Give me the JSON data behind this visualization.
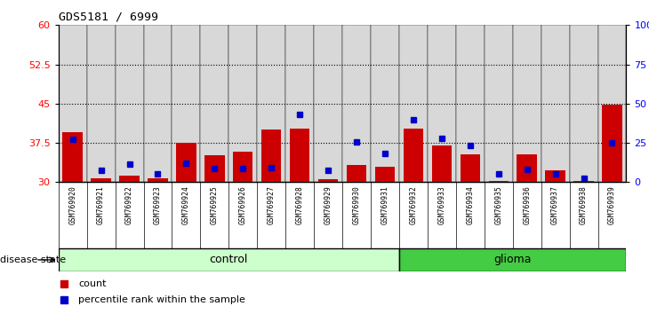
{
  "title": "GDS5181 / 6999",
  "samples": [
    "GSM769920",
    "GSM769921",
    "GSM769922",
    "GSM769923",
    "GSM769924",
    "GSM769925",
    "GSM769926",
    "GSM769927",
    "GSM769928",
    "GSM769929",
    "GSM769930",
    "GSM769931",
    "GSM769932",
    "GSM769933",
    "GSM769934",
    "GSM769935",
    "GSM769936",
    "GSM769937",
    "GSM769938",
    "GSM769939"
  ],
  "count_values": [
    39.5,
    30.8,
    31.2,
    30.8,
    37.5,
    35.2,
    35.8,
    40.0,
    40.3,
    30.5,
    33.2,
    33.0,
    40.3,
    37.0,
    35.3,
    30.3,
    35.3,
    32.3,
    30.3,
    44.8
  ],
  "percentile_values": [
    27.5,
    7.5,
    11.5,
    5.0,
    12.0,
    8.5,
    8.5,
    9.5,
    43.0,
    7.5,
    25.5,
    18.0,
    40.0,
    28.0,
    23.5,
    5.5,
    8.0,
    5.5,
    2.5,
    25.0
  ],
  "control_count": 12,
  "left_ylim": [
    30,
    60
  ],
  "left_yticks": [
    30,
    37.5,
    45,
    52.5,
    60
  ],
  "left_ytick_labels": [
    "30",
    "37.5",
    "45",
    "52.5",
    "60"
  ],
  "right_yticks_pct": [
    0,
    25,
    50,
    75,
    100
  ],
  "right_ytick_labels": [
    "0",
    "25",
    "50",
    "75",
    "100%"
  ],
  "bar_color": "#cc0000",
  "dot_color": "#0000cc",
  "control_bg": "#ccffcc",
  "glioma_bg": "#44cc44",
  "cell_bg": "#d8d8d8",
  "plot_bg": "#ffffff",
  "dotted_lines": [
    37.5,
    45,
    52.5
  ],
  "legend_count_label": "count",
  "legend_pct_label": "percentile rank within the sample"
}
